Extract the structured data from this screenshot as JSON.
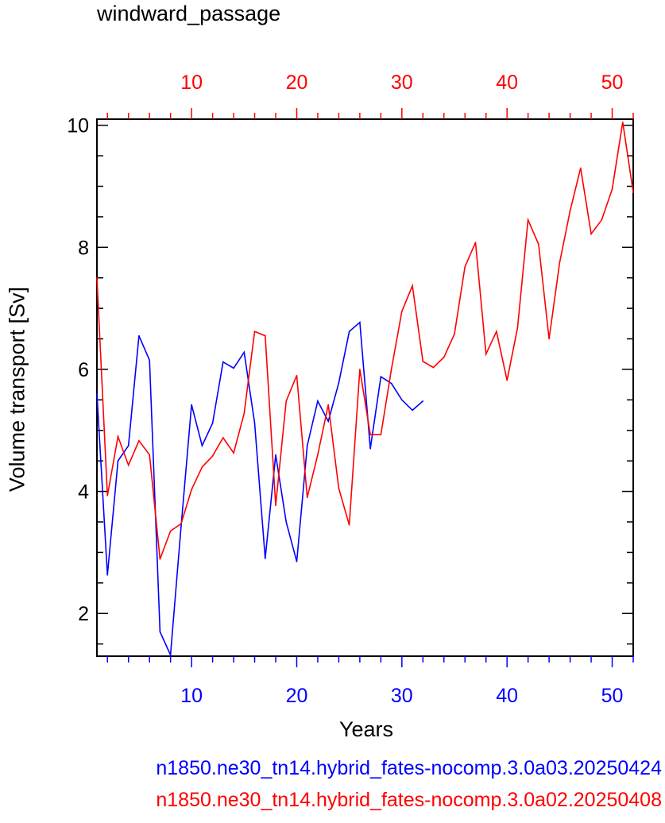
{
  "chart_data": {
    "type": "line",
    "title": "windward_passage",
    "xlabel": "Years",
    "ylabel": "Volume transport [Sv]",
    "xlim": [
      1,
      52
    ],
    "ylim": [
      1.3,
      10.1
    ],
    "yticks": [
      2,
      4,
      6,
      8,
      10
    ],
    "xticks_bottom": [
      10,
      20,
      30,
      40,
      50
    ],
    "xticks_top": [
      10,
      20,
      30,
      40,
      50
    ],
    "grid": false,
    "series": [
      {
        "name": "n1850.ne30_tn14.hybrid_fates-nocomp.3.0a03.20250424",
        "color": "#0000ff",
        "axis": "bottom",
        "x": [
          1,
          2,
          3,
          4,
          5,
          6,
          7,
          8,
          9,
          10,
          11,
          12,
          13,
          14,
          15,
          16,
          17,
          18,
          19,
          20,
          21,
          22,
          23,
          24,
          25,
          26,
          27,
          28,
          29,
          30,
          31,
          32
        ],
        "y": [
          5.6,
          2.63,
          4.5,
          4.75,
          6.55,
          6.15,
          1.7,
          1.32,
          3.42,
          5.42,
          4.75,
          5.12,
          6.12,
          6.02,
          6.28,
          5.12,
          2.9,
          4.6,
          3.5,
          2.85,
          4.75,
          5.48,
          5.15,
          5.78,
          6.62,
          6.77,
          4.7,
          5.88,
          5.77,
          5.5,
          5.33,
          5.48
        ]
      },
      {
        "name": "n1850.ne30_tn14.hybrid_fates-nocomp.3.0a02.20250408",
        "color": "#ff0000",
        "axis": "top",
        "x": [
          1,
          2,
          3,
          4,
          5,
          6,
          7,
          8,
          9,
          10,
          11,
          12,
          13,
          14,
          15,
          16,
          17,
          18,
          19,
          20,
          21,
          22,
          23,
          24,
          25,
          26,
          27,
          28,
          29,
          30,
          31,
          32,
          33,
          34,
          35,
          36,
          37,
          38,
          39,
          40,
          41,
          42,
          43,
          44,
          45,
          46,
          47,
          48,
          49,
          50,
          51,
          52
        ],
        "y": [
          7.5,
          3.93,
          4.9,
          4.43,
          4.83,
          4.6,
          2.89,
          3.35,
          3.47,
          4.03,
          4.4,
          4.58,
          4.88,
          4.63,
          5.28,
          6.62,
          6.55,
          3.77,
          5.48,
          5.9,
          3.9,
          4.6,
          5.42,
          4.05,
          3.45,
          6.0,
          4.93,
          4.93,
          6.0,
          6.95,
          7.37,
          6.13,
          6.03,
          6.2,
          6.58,
          7.68,
          8.08,
          6.25,
          6.62,
          5.82,
          6.68,
          8.45,
          8.05,
          6.5,
          7.75,
          8.6,
          9.3,
          8.22,
          8.45,
          8.95,
          10.05,
          8.9
        ]
      }
    ]
  }
}
